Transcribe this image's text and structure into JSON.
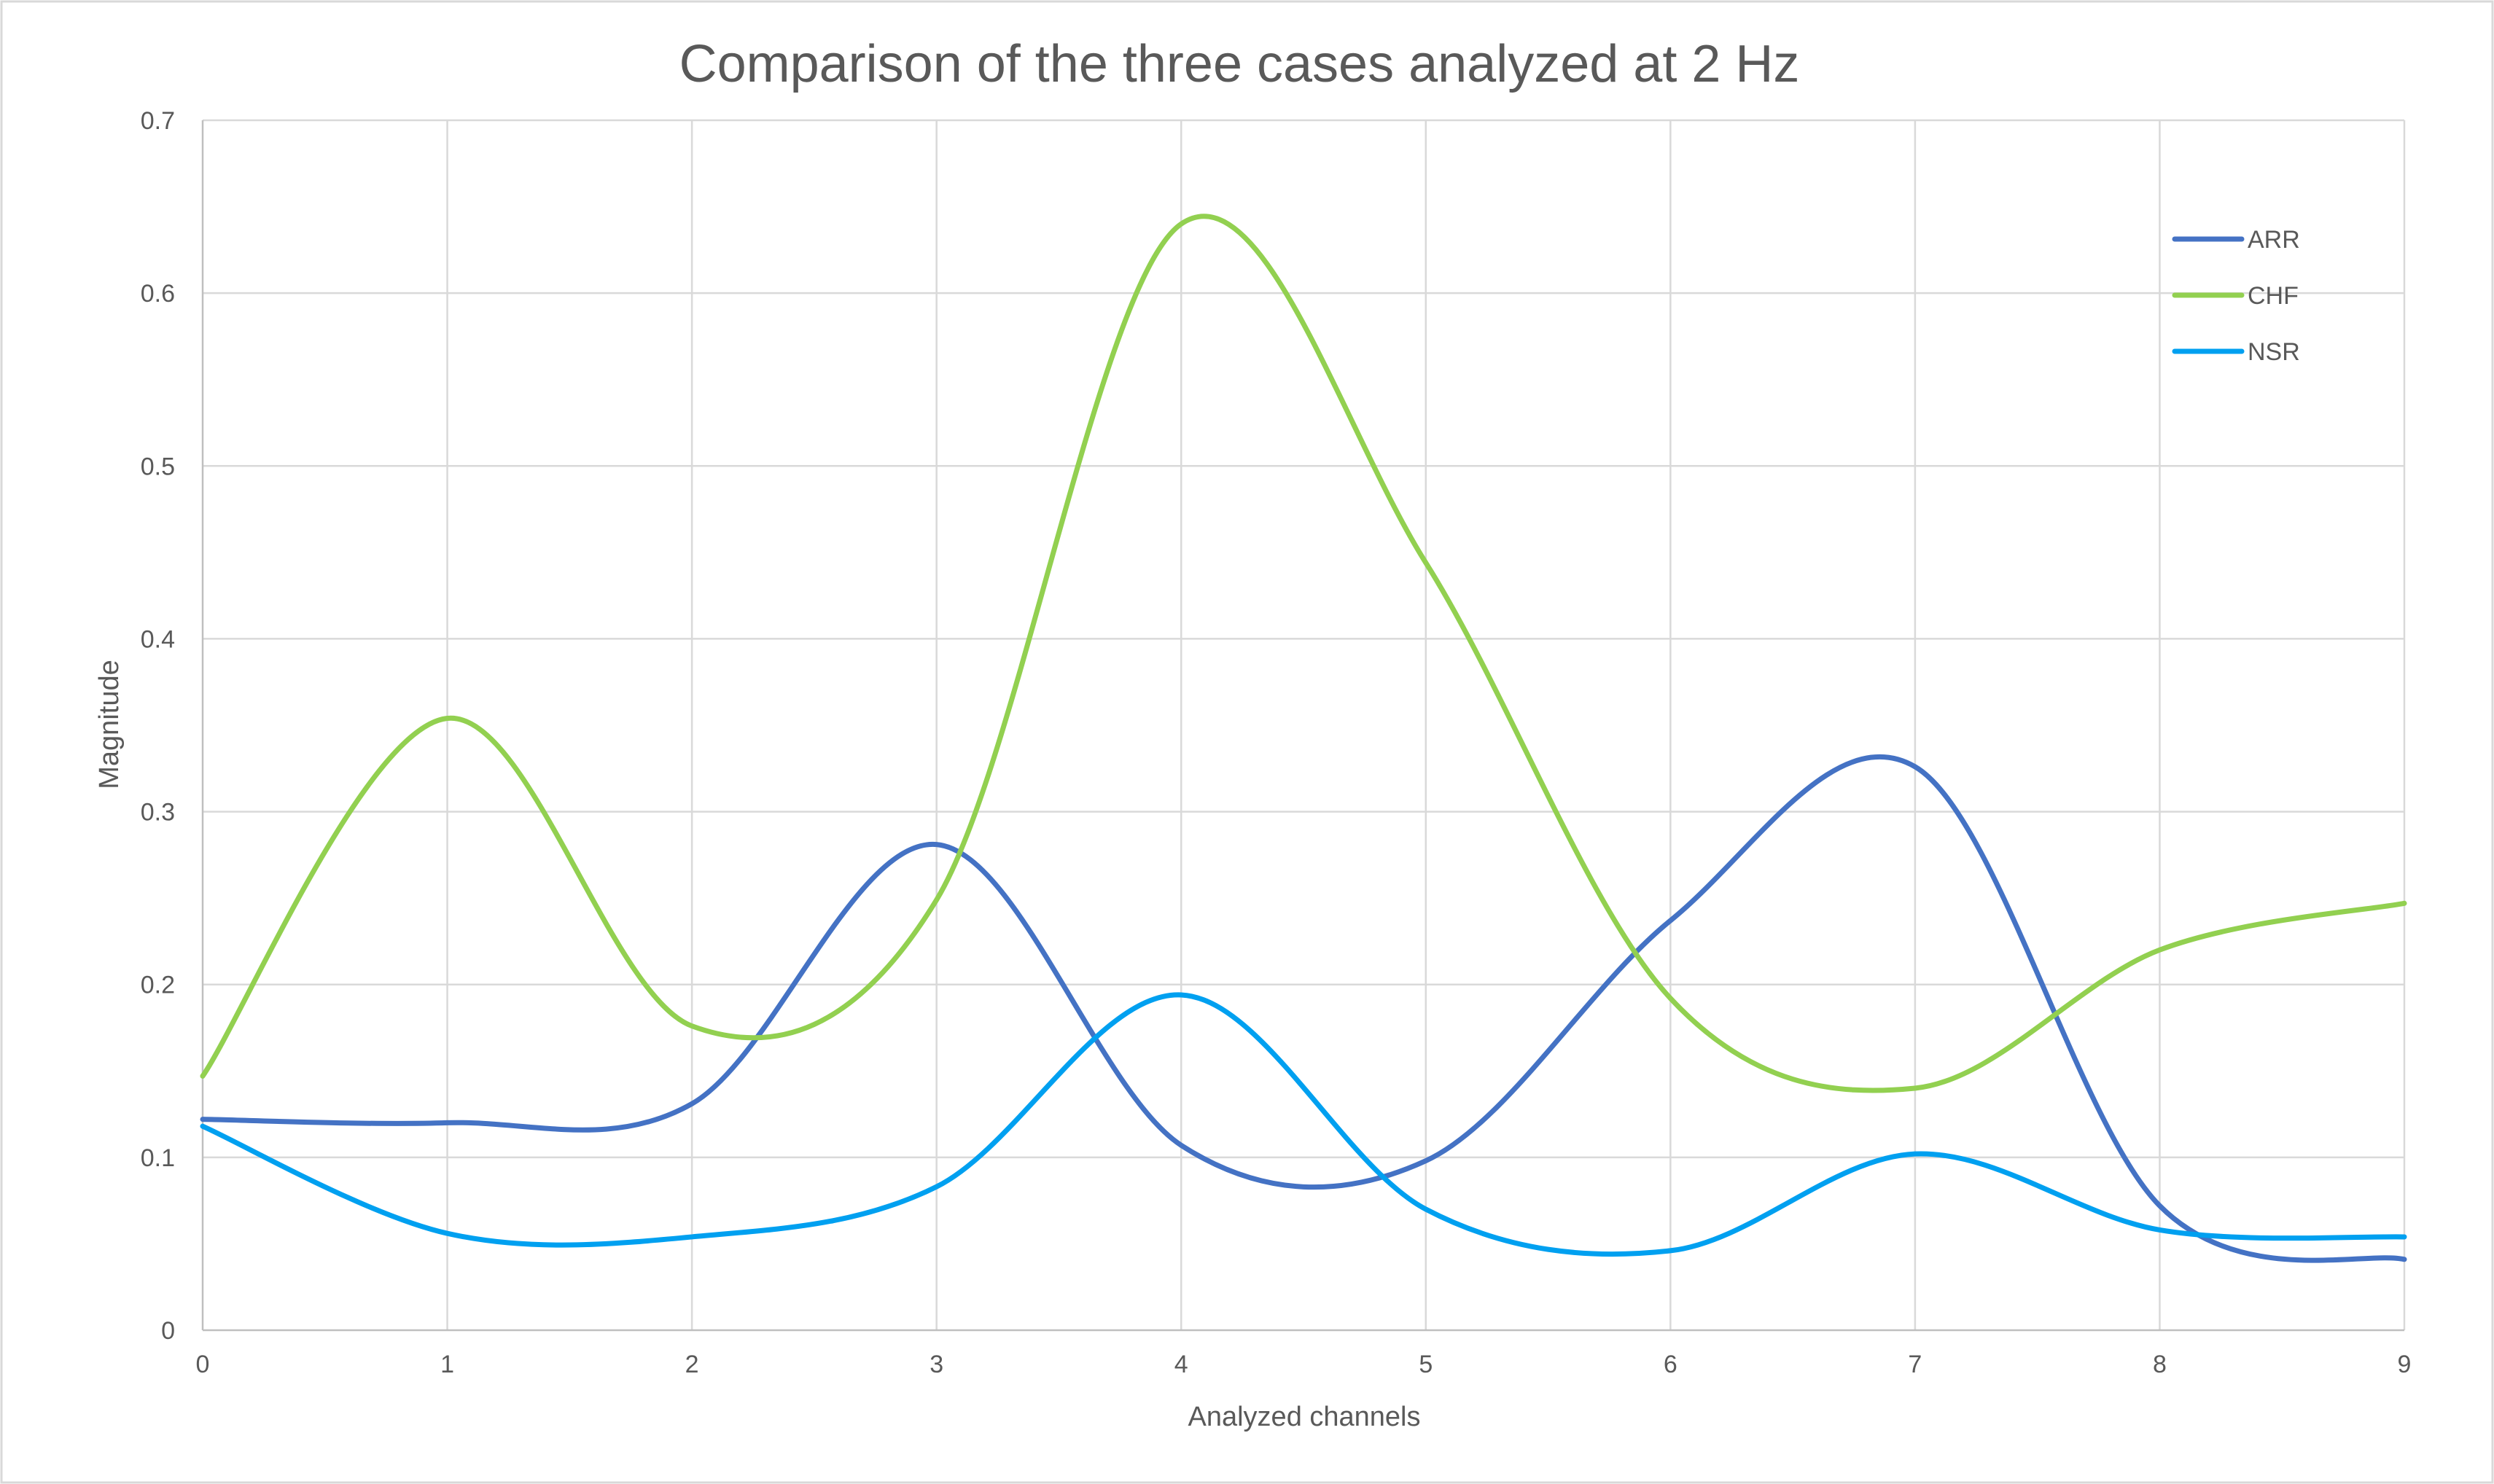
{
  "chart_data": {
    "type": "line",
    "smooth": true,
    "title": "Comparison of the three cases analyzed at 2 Hz",
    "xlabel": "Analyzed channels",
    "ylabel": "Magnitude",
    "x": [
      0,
      1,
      2,
      3,
      4,
      5,
      6,
      7,
      8,
      9
    ],
    "xlim": [
      0,
      9
    ],
    "ylim": [
      0,
      0.7
    ],
    "x_ticks": [
      "0",
      "1",
      "2",
      "3",
      "4",
      "5",
      "6",
      "7",
      "8",
      "9"
    ],
    "y_ticks": [
      "0",
      "0.1",
      "0.2",
      "0.3",
      "0.4",
      "0.5",
      "0.6",
      "0.7"
    ],
    "grid": true,
    "legend_position": "top-right",
    "series": [
      {
        "name": "ARR",
        "color": "#4472c4",
        "values": [
          0.122,
          0.12,
          0.131,
          0.281,
          0.107,
          0.098,
          0.237,
          0.326,
          0.072,
          0.041
        ]
      },
      {
        "name": "CHF",
        "color": "#92d050",
        "values": [
          0.147,
          0.354,
          0.176,
          0.249,
          0.64,
          0.444,
          0.192,
          0.14,
          0.22,
          0.247
        ]
      },
      {
        "name": "NSR",
        "color": "#00a0f0",
        "values": [
          0.118,
          0.056,
          0.054,
          0.083,
          0.194,
          0.07,
          0.046,
          0.102,
          0.058,
          0.054
        ]
      }
    ]
  }
}
